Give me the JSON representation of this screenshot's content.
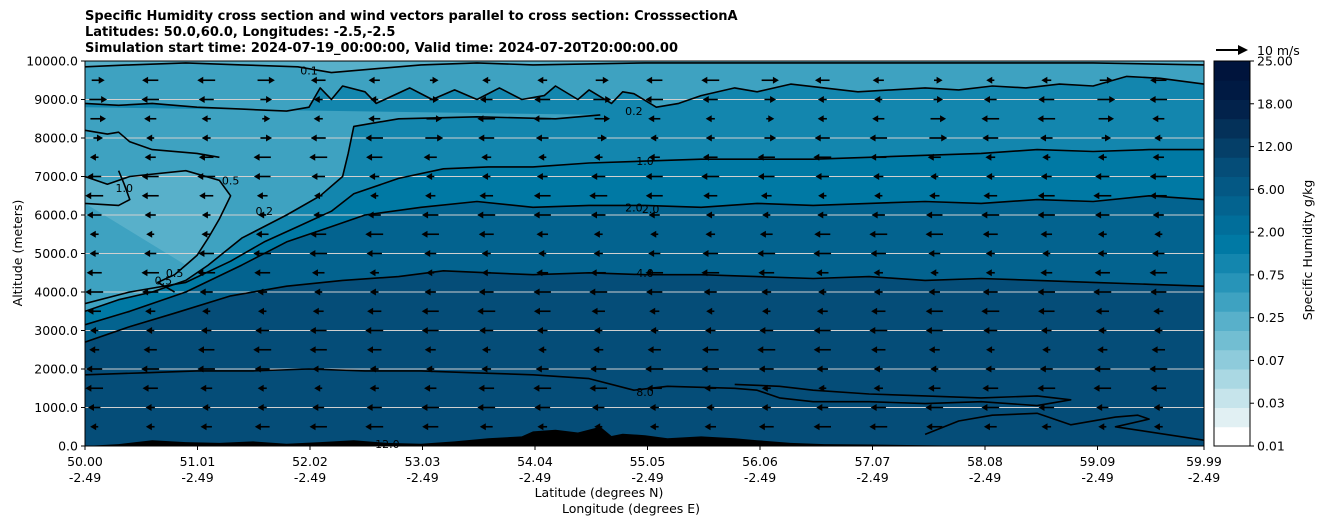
{
  "chart_data": {
    "type": "heatmap",
    "title_lines": [
      "Specific Humidity cross section and wind vectors parallel to cross section: CrosssectionA",
      "Latitudes: 50.0,60.0, Longitudes: -2.5,-2.5",
      "Simulation start time: 2024-07-19_00:00:00, Valid time: 2024-07-20T20:00:00.00"
    ],
    "ylabel": "Altitude (meters)",
    "xlabel_lines": [
      "Latitude (degrees N)",
      "Longitude (degrees E)"
    ],
    "ylim": [
      0,
      10000
    ],
    "xlim": [
      50.0,
      59.99
    ],
    "yticks": [
      "0.0",
      "1000.0",
      "2000.0",
      "3000.0",
      "4000.0",
      "5000.0",
      "6000.0",
      "7000.0",
      "8000.0",
      "9000.0",
      "10000.0"
    ],
    "xticks": [
      {
        "lat": "50.00",
        "lon": "-2.49"
      },
      {
        "lat": "51.01",
        "lon": "-2.49"
      },
      {
        "lat": "52.02",
        "lon": "-2.49"
      },
      {
        "lat": "53.03",
        "lon": "-2.49"
      },
      {
        "lat": "54.04",
        "lon": "-2.49"
      },
      {
        "lat": "55.05",
        "lon": "-2.49"
      },
      {
        "lat": "56.06",
        "lon": "-2.49"
      },
      {
        "lat": "57.07",
        "lon": "-2.49"
      },
      {
        "lat": "58.08",
        "lon": "-2.49"
      },
      {
        "lat": "59.09",
        "lon": "-2.49"
      },
      {
        "lat": "59.99",
        "lon": "-2.49"
      }
    ],
    "horizontal_grid": true,
    "colorbar": {
      "label": "Specific Humidity g/kg",
      "tick_labels": [
        "0.01",
        "0.03",
        "0.07",
        "0.25",
        "0.75",
        "2.00",
        "6.00",
        "12.00",
        "18.00",
        "25.00"
      ],
      "colors": [
        "#ffffff",
        "#e1f0f3",
        "#c6e4eb",
        "#aad8e3",
        "#8ecbdb",
        "#72bed2",
        "#58b0ca",
        "#3ea2c1",
        "#2794b8",
        "#1386ae",
        "#0079a4",
        "#016e9a",
        "#03638f",
        "#045884",
        "#054d78",
        "#053f68",
        "#043159",
        "#02224b",
        "#001a43",
        "#00143c"
      ]
    },
    "quiver_key": "10 m/s",
    "contour_labels": [
      {
        "text": "0.1",
        "lat": 52.0,
        "alt": 9750
      },
      {
        "text": "0.2",
        "lat": 54.9,
        "alt": 8700
      },
      {
        "text": "1.0",
        "lat": 55.0,
        "alt": 7400
      },
      {
        "text": "2.0",
        "lat": 54.9,
        "alt": 6200
      },
      {
        "text": "2.0",
        "lat": 55.05,
        "alt": 6150
      },
      {
        "text": "0.2",
        "lat": 51.6,
        "alt": 6100
      },
      {
        "text": "0.5",
        "lat": 51.3,
        "alt": 6900
      },
      {
        "text": "1.0",
        "lat": 50.35,
        "alt": 6700
      },
      {
        "text": "0.5",
        "lat": 50.8,
        "alt": 4500
      },
      {
        "text": "0.5",
        "lat": 50.7,
        "alt": 4300
      },
      {
        "text": "4.0",
        "lat": 55.0,
        "alt": 4500
      },
      {
        "text": "8.0",
        "lat": 55.0,
        "alt": 1400
      },
      {
        "text": "12.0",
        "lat": 52.7,
        "alt": 50
      }
    ],
    "contours": [
      {
        "level": 0.1,
        "points": [
          [
            50.0,
            9850
          ],
          [
            50.4,
            9900
          ],
          [
            50.9,
            9950
          ],
          [
            51.4,
            9900
          ],
          [
            51.9,
            9850
          ],
          [
            52.2,
            9700
          ],
          [
            52.6,
            9800
          ],
          [
            53.0,
            9900
          ],
          [
            53.5,
            9950
          ],
          [
            54.0,
            9900
          ],
          [
            55.0,
            9950
          ],
          [
            56.0,
            9950
          ],
          [
            57.0,
            9950
          ],
          [
            58.0,
            9950
          ],
          [
            59.0,
            9950
          ],
          [
            59.99,
            9900
          ]
        ]
      },
      {
        "level": 0.2,
        "points": [
          [
            50.0,
            8900
          ],
          [
            50.3,
            8850
          ],
          [
            50.6,
            8900
          ],
          [
            51.0,
            8800
          ],
          [
            51.4,
            8750
          ],
          [
            51.8,
            8700
          ],
          [
            52.0,
            8800
          ],
          [
            52.1,
            9300
          ],
          [
            52.2,
            9000
          ],
          [
            52.3,
            9350
          ],
          [
            52.5,
            9200
          ],
          [
            52.6,
            8900
          ],
          [
            52.9,
            9300
          ],
          [
            53.1,
            9000
          ],
          [
            53.3,
            9250
          ],
          [
            53.5,
            9000
          ],
          [
            53.7,
            9300
          ],
          [
            53.9,
            9000
          ],
          [
            54.1,
            9100
          ],
          [
            54.2,
            9350
          ],
          [
            54.4,
            9000
          ],
          [
            54.5,
            9250
          ],
          [
            54.7,
            8900
          ],
          [
            54.8,
            9200
          ],
          [
            54.9,
            9150
          ],
          [
            55.1,
            8800
          ],
          [
            55.3,
            8900
          ],
          [
            55.5,
            9100
          ],
          [
            55.8,
            9300
          ],
          [
            56.0,
            9200
          ],
          [
            56.3,
            9400
          ],
          [
            56.6,
            9300
          ],
          [
            56.9,
            9200
          ],
          [
            57.2,
            9250
          ],
          [
            57.5,
            9300
          ],
          [
            57.8,
            9250
          ],
          [
            58.1,
            9350
          ],
          [
            58.4,
            9300
          ],
          [
            58.7,
            9400
          ],
          [
            59.0,
            9350
          ],
          [
            59.3,
            9600
          ],
          [
            59.6,
            9550
          ],
          [
            59.99,
            9400
          ]
        ]
      },
      {
        "level": 0.2,
        "points": [
          [
            54.6,
            8600
          ],
          [
            54.2,
            8500
          ],
          [
            53.5,
            8550
          ],
          [
            52.8,
            8500
          ],
          [
            52.4,
            8300
          ],
          [
            52.35,
            7600
          ],
          [
            52.3,
            7000
          ],
          [
            52.1,
            6500
          ],
          [
            51.8,
            6000
          ],
          [
            51.4,
            5400
          ],
          [
            51.1,
            4700
          ],
          [
            50.9,
            4300
          ],
          [
            50.6,
            4000
          ],
          [
            50.3,
            3800
          ],
          [
            50.0,
            3500
          ]
        ]
      },
      {
        "level": 0.5,
        "points": [
          [
            50.0,
            7000
          ],
          [
            50.2,
            6800
          ],
          [
            50.4,
            7000
          ],
          [
            50.9,
            7150
          ],
          [
            51.2,
            6900
          ],
          [
            51.3,
            6500
          ],
          [
            51.2,
            5900
          ],
          [
            51.1,
            5400
          ],
          [
            51.0,
            4950
          ],
          [
            50.9,
            4700
          ],
          [
            50.8,
            4450
          ],
          [
            50.65,
            4250
          ],
          [
            50.8,
            4000
          ]
        ]
      },
      {
        "level": 0.5,
        "points": [
          [
            51.2,
            7500
          ],
          [
            51.0,
            7600
          ],
          [
            50.6,
            7700
          ],
          [
            50.4,
            7900
          ],
          [
            50.3,
            8150
          ],
          [
            50.2,
            8100
          ],
          [
            50.0,
            8200
          ]
        ]
      },
      {
        "level": 1.0,
        "points": [
          [
            50.3,
            7150
          ],
          [
            50.35,
            6800
          ],
          [
            50.4,
            6400
          ],
          [
            50.3,
            6250
          ],
          [
            50.0,
            6300
          ]
        ]
      },
      {
        "level": 1.0,
        "points": [
          [
            50.0,
            3700
          ],
          [
            50.4,
            4000
          ],
          [
            50.9,
            4250
          ],
          [
            51.3,
            4800
          ],
          [
            51.6,
            5300
          ],
          [
            51.9,
            5700
          ],
          [
            52.2,
            6100
          ],
          [
            52.4,
            6550
          ],
          [
            52.8,
            6950
          ],
          [
            53.2,
            7200
          ],
          [
            53.6,
            7250
          ],
          [
            54.0,
            7250
          ],
          [
            54.5,
            7350
          ],
          [
            55.0,
            7400
          ],
          [
            55.5,
            7450
          ],
          [
            56.0,
            7450
          ],
          [
            56.5,
            7450
          ],
          [
            57.0,
            7500
          ],
          [
            57.5,
            7550
          ],
          [
            58.0,
            7600
          ],
          [
            58.5,
            7700
          ],
          [
            59.0,
            7650
          ],
          [
            59.5,
            7700
          ],
          [
            59.99,
            7700
          ]
        ]
      },
      {
        "level": 2.0,
        "points": [
          [
            50.0,
            3150
          ],
          [
            50.4,
            3500
          ],
          [
            50.9,
            4000
          ],
          [
            51.4,
            4700
          ],
          [
            51.8,
            5300
          ],
          [
            52.2,
            5700
          ],
          [
            52.5,
            6000
          ],
          [
            53.0,
            6200
          ],
          [
            53.5,
            6350
          ],
          [
            54.0,
            6200
          ],
          [
            54.5,
            6250
          ],
          [
            55.0,
            6250
          ],
          [
            55.5,
            6200
          ],
          [
            56.0,
            6300
          ],
          [
            56.5,
            6250
          ],
          [
            57.0,
            6300
          ],
          [
            57.5,
            6350
          ],
          [
            58.0,
            6300
          ],
          [
            58.5,
            6400
          ],
          [
            59.0,
            6350
          ],
          [
            59.5,
            6500
          ],
          [
            59.99,
            6400
          ]
        ]
      },
      {
        "level": 4.0,
        "points": [
          [
            50.0,
            2700
          ],
          [
            50.4,
            3100
          ],
          [
            50.8,
            3450
          ],
          [
            51.3,
            3900
          ],
          [
            51.8,
            4150
          ],
          [
            52.3,
            4300
          ],
          [
            52.8,
            4400
          ],
          [
            53.2,
            4550
          ],
          [
            53.6,
            4500
          ],
          [
            54.0,
            4450
          ],
          [
            54.5,
            4500
          ],
          [
            55.0,
            4450
          ],
          [
            55.5,
            4450
          ],
          [
            56.0,
            4400
          ],
          [
            56.5,
            4350
          ],
          [
            57.0,
            4400
          ],
          [
            57.5,
            4300
          ],
          [
            58.0,
            4350
          ],
          [
            58.5,
            4300
          ],
          [
            59.0,
            4250
          ],
          [
            59.5,
            4200
          ],
          [
            59.99,
            4150
          ]
        ]
      },
      {
        "level": 8.0,
        "points": [
          [
            50.0,
            1850
          ],
          [
            50.5,
            1900
          ],
          [
            51.0,
            1950
          ],
          [
            51.5,
            1950
          ],
          [
            52.0,
            2000
          ],
          [
            52.5,
            1950
          ],
          [
            53.0,
            1950
          ],
          [
            53.5,
            1900
          ],
          [
            54.0,
            1850
          ],
          [
            54.5,
            1750
          ],
          [
            54.9,
            1450
          ],
          [
            55.2,
            1550
          ],
          [
            55.8,
            1500
          ],
          [
            56.0,
            1450
          ],
          [
            56.2,
            1250
          ],
          [
            56.5,
            1150
          ],
          [
            57.0,
            1150
          ],
          [
            57.5,
            1100
          ],
          [
            58.0,
            1150
          ],
          [
            58.5,
            1050
          ],
          [
            58.8,
            1200
          ],
          [
            58.5,
            1300
          ],
          [
            58.0,
            1250
          ],
          [
            57.5,
            1300
          ],
          [
            57.0,
            1350
          ],
          [
            56.5,
            1450
          ],
          [
            56.2,
            1550
          ],
          [
            55.8,
            1600
          ]
        ]
      },
      {
        "level": 12.0,
        "points": [
          [
            57.5,
            300
          ],
          [
            57.8,
            650
          ],
          [
            58.1,
            800
          ],
          [
            58.5,
            850
          ],
          [
            58.8,
            550
          ],
          [
            59.2,
            750
          ],
          [
            59.4,
            800
          ],
          [
            59.5,
            700
          ],
          [
            59.2,
            500
          ],
          [
            59.99,
            150
          ]
        ]
      }
    ],
    "terrain": [
      [
        50.0,
        0
      ],
      [
        50.3,
        50
      ],
      [
        50.6,
        150
      ],
      [
        50.9,
        100
      ],
      [
        51.2,
        80
      ],
      [
        51.5,
        120
      ],
      [
        51.8,
        60
      ],
      [
        52.1,
        100
      ],
      [
        52.4,
        150
      ],
      [
        52.7,
        80
      ],
      [
        53.0,
        60
      ],
      [
        53.3,
        120
      ],
      [
        53.6,
        200
      ],
      [
        53.9,
        250
      ],
      [
        54.0,
        380
      ],
      [
        54.2,
        420
      ],
      [
        54.4,
        350
      ],
      [
        54.6,
        500
      ],
      [
        54.7,
        260
      ],
      [
        54.8,
        320
      ],
      [
        55.0,
        280
      ],
      [
        55.2,
        200
      ],
      [
        55.5,
        250
      ],
      [
        55.8,
        200
      ],
      [
        56.0,
        150
      ],
      [
        56.3,
        80
      ],
      [
        56.6,
        50
      ],
      [
        57.0,
        40
      ],
      [
        57.5,
        20
      ],
      [
        58.0,
        0
      ],
      [
        59.99,
        0
      ]
    ],
    "wind_rows_alt": [
      9500,
      9000,
      8500,
      8000,
      7500,
      7000,
      6500,
      6000,
      5500,
      5000,
      4500,
      4000,
      3500,
      3000,
      2500,
      2000,
      1500,
      1000,
      500
    ],
    "wind_cols_lat": [
      50.1,
      50.6,
      51.1,
      51.6,
      52.1,
      52.6,
      53.1,
      53.6,
      54.1,
      54.6,
      55.1,
      55.6,
      56.1,
      56.6,
      57.1,
      57.6,
      58.1,
      58.6,
      59.1,
      59.6
    ]
  }
}
